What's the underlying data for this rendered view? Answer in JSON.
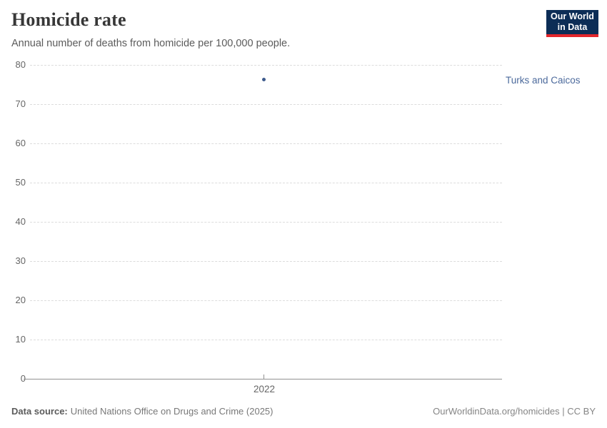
{
  "header": {
    "title": "Homicide rate",
    "subtitle": "Annual number of deaths from homicide per 100,000 people.",
    "logo": {
      "line1": "Our World",
      "line2": "in Data",
      "bg_color": "#0c2d56",
      "bar_color": "#e2262c"
    }
  },
  "chart_data": {
    "type": "scatter",
    "title": "Homicide rate",
    "subtitle": "Annual number of deaths from homicide per 100,000 people.",
    "series": [
      {
        "name": "Turks and Caicos",
        "x": [
          2022
        ],
        "y": [
          76.2
        ],
        "point_color": "#3d5a8c",
        "label_color": "#4c6a9c"
      }
    ],
    "x_ticks": [
      "2022"
    ],
    "y_ticks": [
      0,
      10,
      20,
      30,
      40,
      50,
      60,
      70,
      80
    ],
    "ylim": [
      0,
      80
    ],
    "grid": "horizontal-dashed",
    "legend_position": "right-of-plot",
    "axis_color": "#919191",
    "gridline_color": "#dcdcdc",
    "tick_label_color": "#666666"
  },
  "footer": {
    "source_label": "Data source:",
    "source_value": "United Nations Office on Drugs and Crime (2025)",
    "citation": "OurWorldinData.org/homicides | CC BY"
  }
}
